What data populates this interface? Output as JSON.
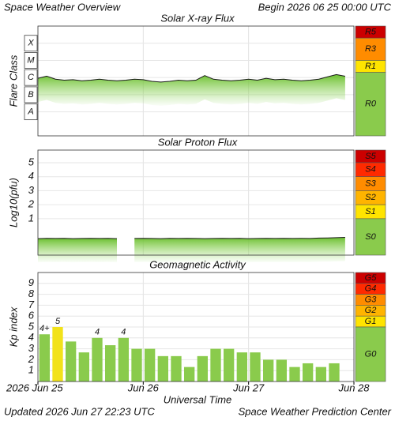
{
  "header": {
    "title": "Space Weather Overview",
    "begin": "Begin 2026 06 25 00:00 UTC"
  },
  "footer": {
    "updated": "Updated 2026 Jun 27 22:23 UTC",
    "source": "Space Weather Prediction Center"
  },
  "chart_data": [
    {
      "type": "line",
      "title": "Solar X-ray Flux",
      "y_label": "Flare Class",
      "log_scale": true,
      "color": "#1a1a1a",
      "fill_color": "#7ccc3c",
      "ylim": [
        4e-10,
        0.001
      ],
      "yticks": [
        {
          "value": 1e-08,
          "label": "A"
        },
        {
          "value": 1e-07,
          "label": "B"
        },
        {
          "value": 1e-06,
          "label": "C"
        },
        {
          "value": 1e-05,
          "label": "M"
        },
        {
          "value": 0.0001,
          "label": "X"
        }
      ],
      "xlim": [
        0,
        72
      ],
      "x": [
        0,
        2,
        4,
        6,
        8,
        10,
        12,
        14,
        16,
        18,
        20,
        22,
        24,
        26,
        28,
        30,
        32,
        34,
        36,
        38,
        40,
        42,
        44,
        46,
        48,
        50,
        52,
        54,
        56,
        58,
        60,
        62,
        64,
        66,
        68,
        70
      ],
      "values": [
        9e-07,
        1.2e-06,
        8e-07,
        7e-07,
        7.5e-07,
        6.5e-07,
        7e-07,
        8e-07,
        7e-07,
        6.5e-07,
        7e-07,
        8e-07,
        7.5e-07,
        6e-07,
        5.5e-07,
        6e-07,
        7e-07,
        6.5e-07,
        7e-07,
        1.3e-06,
        8e-07,
        7e-07,
        6.5e-07,
        7e-07,
        8e-07,
        7e-07,
        9e-07,
        7.5e-07,
        8e-07,
        7e-07,
        6.5e-07,
        7e-07,
        8e-07,
        1.1e-06,
        1.5e-06,
        1.2e-06
      ],
      "scale": [
        {
          "label": "R5",
          "color": "#cc0000",
          "range": [
            0.0002,
            0.001
          ]
        },
        {
          "label": "R3",
          "color": "#ff8c00",
          "range": [
            1e-05,
            0.0002
          ]
        },
        {
          "label": "R1",
          "color": "#ffe400",
          "range": [
            2e-06,
            1e-05
          ]
        },
        {
          "label": "R0",
          "color": "#8acb4c",
          "range": [
            4e-10,
            2e-06
          ]
        }
      ]
    },
    {
      "type": "line",
      "title": "Solar Proton Flux",
      "y_label": "Log10(pfu)",
      "color": "#1a1a1a",
      "fill_color": "#7ccc3c",
      "ylim": [
        -1.6,
        5.9
      ],
      "yticks": [
        1,
        2,
        3,
        4,
        5
      ],
      "xlim": [
        0,
        72
      ],
      "x": [
        0,
        2,
        4,
        6,
        8,
        10,
        12,
        14,
        16,
        18,
        20,
        22,
        24,
        26,
        28,
        30,
        32,
        34,
        36,
        38,
        40,
        42,
        44,
        46,
        48,
        50,
        52,
        54,
        56,
        58,
        60,
        62,
        64,
        66,
        68,
        70
      ],
      "values": [
        -0.42,
        -0.4,
        -0.41,
        -0.4,
        -0.42,
        -0.41,
        -0.4,
        -0.41,
        -0.4,
        -0.42,
        null,
        -0.41,
        -0.4,
        -0.41,
        -0.42,
        -0.4,
        -0.41,
        -0.4,
        -0.41,
        -0.42,
        -0.41,
        -0.4,
        -0.41,
        -0.4,
        -0.42,
        -0.41,
        -0.4,
        -0.41,
        -0.4,
        -0.41,
        -0.4,
        -0.41,
        -0.38,
        -0.37,
        -0.35,
        -0.33
      ],
      "scale": [
        {
          "label": "S5",
          "color": "#cc0000",
          "range": [
            5,
            5.9
          ]
        },
        {
          "label": "S4",
          "color": "#ff2a00",
          "range": [
            4,
            5
          ]
        },
        {
          "label": "S3",
          "color": "#ff8c00",
          "range": [
            3,
            4
          ]
        },
        {
          "label": "S2",
          "color": "#ffb400",
          "range": [
            2,
            3
          ]
        },
        {
          "label": "S1",
          "color": "#ffe400",
          "range": [
            1,
            2
          ]
        },
        {
          "label": "S0",
          "color": "#8acb4c",
          "range": [
            -1.6,
            1
          ]
        }
      ]
    },
    {
      "type": "bar",
      "title": "Geomagnetic Activity",
      "y_label": "Kp index",
      "x_label": "Universal Time",
      "ylim": [
        0,
        10
      ],
      "yticks": [
        1,
        2,
        3,
        4,
        5,
        6,
        7,
        8,
        9
      ],
      "xlim": [
        0,
        72
      ],
      "bin_width": 3,
      "xticks": [
        {
          "value": 0,
          "label": "2026 Jun 25"
        },
        {
          "value": 24,
          "label": "Jun 26"
        },
        {
          "value": 48,
          "label": "Jun 27"
        },
        {
          "value": 72,
          "label": "Jun 28"
        }
      ],
      "x": [
        0,
        3,
        6,
        9,
        12,
        15,
        18,
        21,
        24,
        27,
        30,
        33,
        36,
        39,
        42,
        45,
        48,
        51,
        54,
        57,
        60,
        63,
        66
      ],
      "values": [
        4.33,
        5,
        3.67,
        2.67,
        4,
        3.33,
        4,
        3,
        3,
        2.33,
        2.33,
        1.33,
        2.33,
        3,
        3,
        2.67,
        2.67,
        2,
        2,
        1.33,
        1.67,
        1.33,
        1.67
      ],
      "value_labels": [
        "4+",
        "5",
        null,
        null,
        "4",
        null,
        "4",
        null,
        null,
        null,
        null,
        null,
        null,
        null,
        null,
        null,
        null,
        null,
        null,
        null,
        null,
        null,
        null
      ],
      "colors": [
        "#8acb4c",
        "#f2e21a",
        "#8acb4c",
        "#8acb4c",
        "#8acb4c",
        "#8acb4c",
        "#8acb4c",
        "#8acb4c",
        "#8acb4c",
        "#8acb4c",
        "#8acb4c",
        "#8acb4c",
        "#8acb4c",
        "#8acb4c",
        "#8acb4c",
        "#8acb4c",
        "#8acb4c",
        "#8acb4c",
        "#8acb4c",
        "#8acb4c",
        "#8acb4c",
        "#8acb4c",
        "#8acb4c"
      ],
      "scale": [
        {
          "label": "G5",
          "color": "#cc0000",
          "range": [
            9,
            10
          ]
        },
        {
          "label": "G4",
          "color": "#ff2a00",
          "range": [
            8,
            9
          ]
        },
        {
          "label": "G3",
          "color": "#ff8c00",
          "range": [
            7,
            8
          ]
        },
        {
          "label": "G2",
          "color": "#ffb400",
          "range": [
            6,
            7
          ]
        },
        {
          "label": "G1",
          "color": "#ffe400",
          "range": [
            5,
            6
          ]
        },
        {
          "label": "G0",
          "color": "#8acb4c",
          "range": [
            0,
            5
          ]
        }
      ]
    }
  ]
}
